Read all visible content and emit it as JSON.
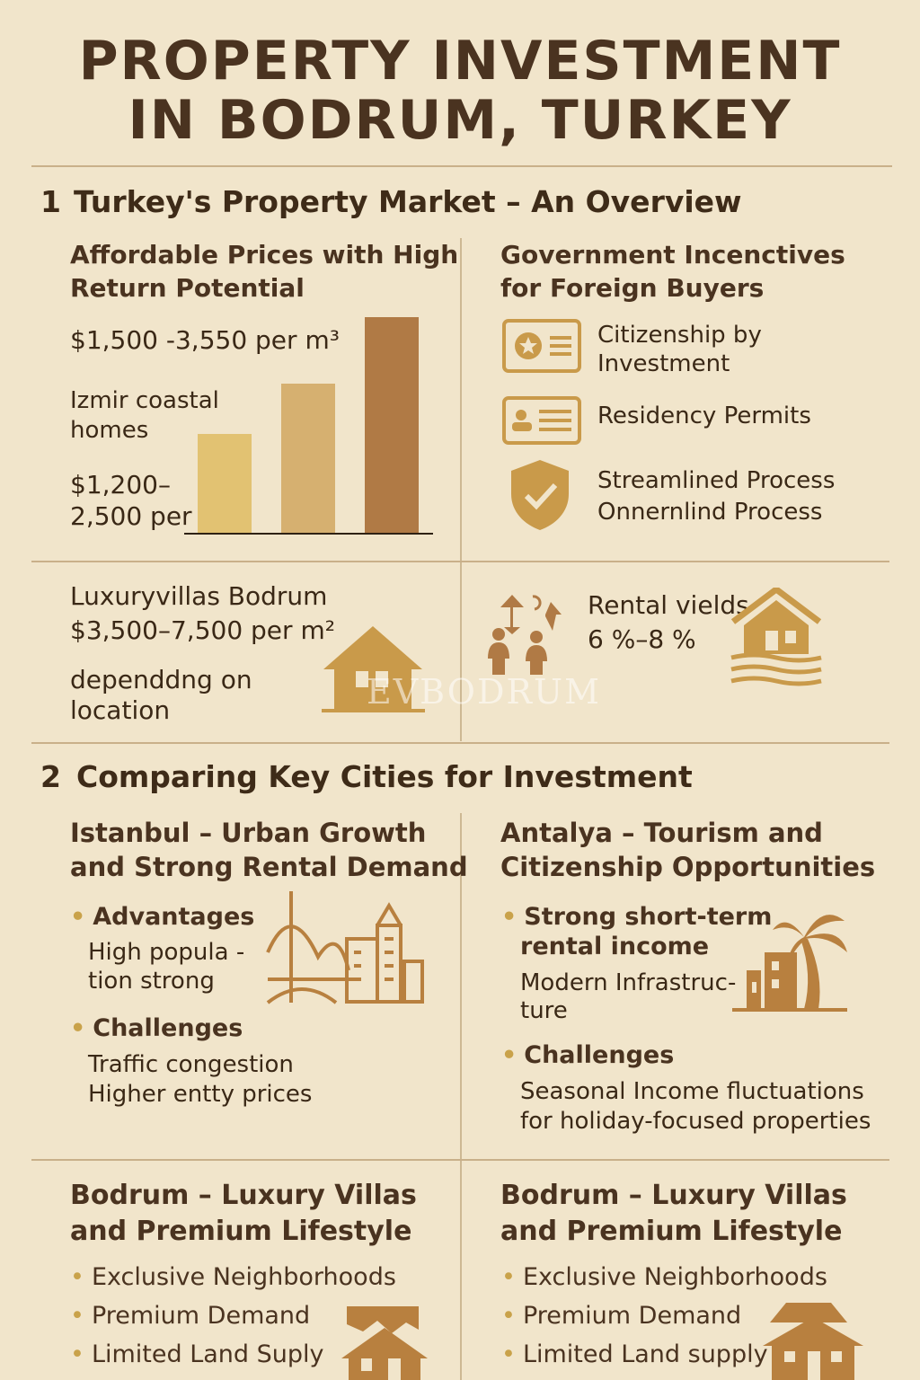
{
  "title": {
    "line1": "PROPERTY INVESTMENT",
    "line2": "IN BODRUM, TURKEY"
  },
  "colors": {
    "background": "#f1e5cb",
    "title": "#4a3320",
    "gold": "#c9a24a",
    "brown": "#b07a45",
    "sand": "#d6b070"
  },
  "section1": {
    "number": "1",
    "heading": "Turkey's Property Market – An Overview",
    "prices": {
      "heading_line1": "Affordable Prices with High",
      "heading_line2": "Return Potential",
      "range1": "$1,500 -3,550 per m³",
      "izmir_line1": "Izmir coastal",
      "izmir_line2": "homes",
      "range2_line1": "$1,200–",
      "range2_line2": "2,500 per",
      "bar_levels_percent": [
        46,
        69,
        100
      ],
      "bar_colors": [
        "#e2c272",
        "#d6b070",
        "#b07a45"
      ]
    },
    "incentives": {
      "heading_line1": "Government Incenctives",
      "heading_line2": "for Foreign Buyers",
      "items": [
        {
          "icon": "id-card-star-icon",
          "line1": "Citizenship by",
          "line2": "Investment"
        },
        {
          "icon": "id-card-person-icon",
          "line1": "Residency Permits",
          "line2": ""
        },
        {
          "icon": "shield-check-icon",
          "line1": "Streamlined Process",
          "line2": "Onnernlind Process"
        }
      ]
    },
    "luxury": {
      "line1": "Luxuryvillas Bodrum",
      "line2": "$3,500–7,500 per m²",
      "line3": "dependdng on",
      "line4": "location"
    },
    "rental": {
      "line1": "Rental vields",
      "line2": "6 %–8 %"
    },
    "watermark": "EVBODRUM"
  },
  "section2": {
    "number": "2",
    "heading": "Comparing Key Cities for Investment",
    "istanbul": {
      "heading_line1": "Istanbul – Urban Growth",
      "heading_line2": "and Strong Rental Demand",
      "adv_label": "Advantages",
      "adv_line1": "High popula -",
      "adv_line2": "tion strong",
      "chal_label": "Challenges",
      "chal_line1": "Traffic congestion",
      "chal_line2": "Higher entty prices"
    },
    "antalya": {
      "heading_line1": "Antalya – Tourism and",
      "heading_line2": "Citizenship Opportunities",
      "adv_line1": "Strong short-term",
      "adv_line2": "rental income",
      "adv_sub1": "Modern Infrastruc-",
      "adv_sub2": "ture",
      "chal_label": "Challenges",
      "chal_line1": "Seasonal Income fluctuations",
      "chal_line2": "for holiday-focused properties"
    },
    "bodrum_left": {
      "heading_line1": "Bodrum – Luxury Villas",
      "heading_line2": "and Premium Lifestyle",
      "items": [
        "Exclusive Neighborhoods",
        "Premium Demand",
        "Limited Land Suply"
      ]
    },
    "bodrum_right": {
      "heading_line1": "Bodrum – Luxury Villas",
      "heading_line2": "and Premium Lifestyle",
      "items": [
        "Exclusive Neighborhoods",
        "Premium Demand",
        "Limited Land supply"
      ]
    }
  }
}
